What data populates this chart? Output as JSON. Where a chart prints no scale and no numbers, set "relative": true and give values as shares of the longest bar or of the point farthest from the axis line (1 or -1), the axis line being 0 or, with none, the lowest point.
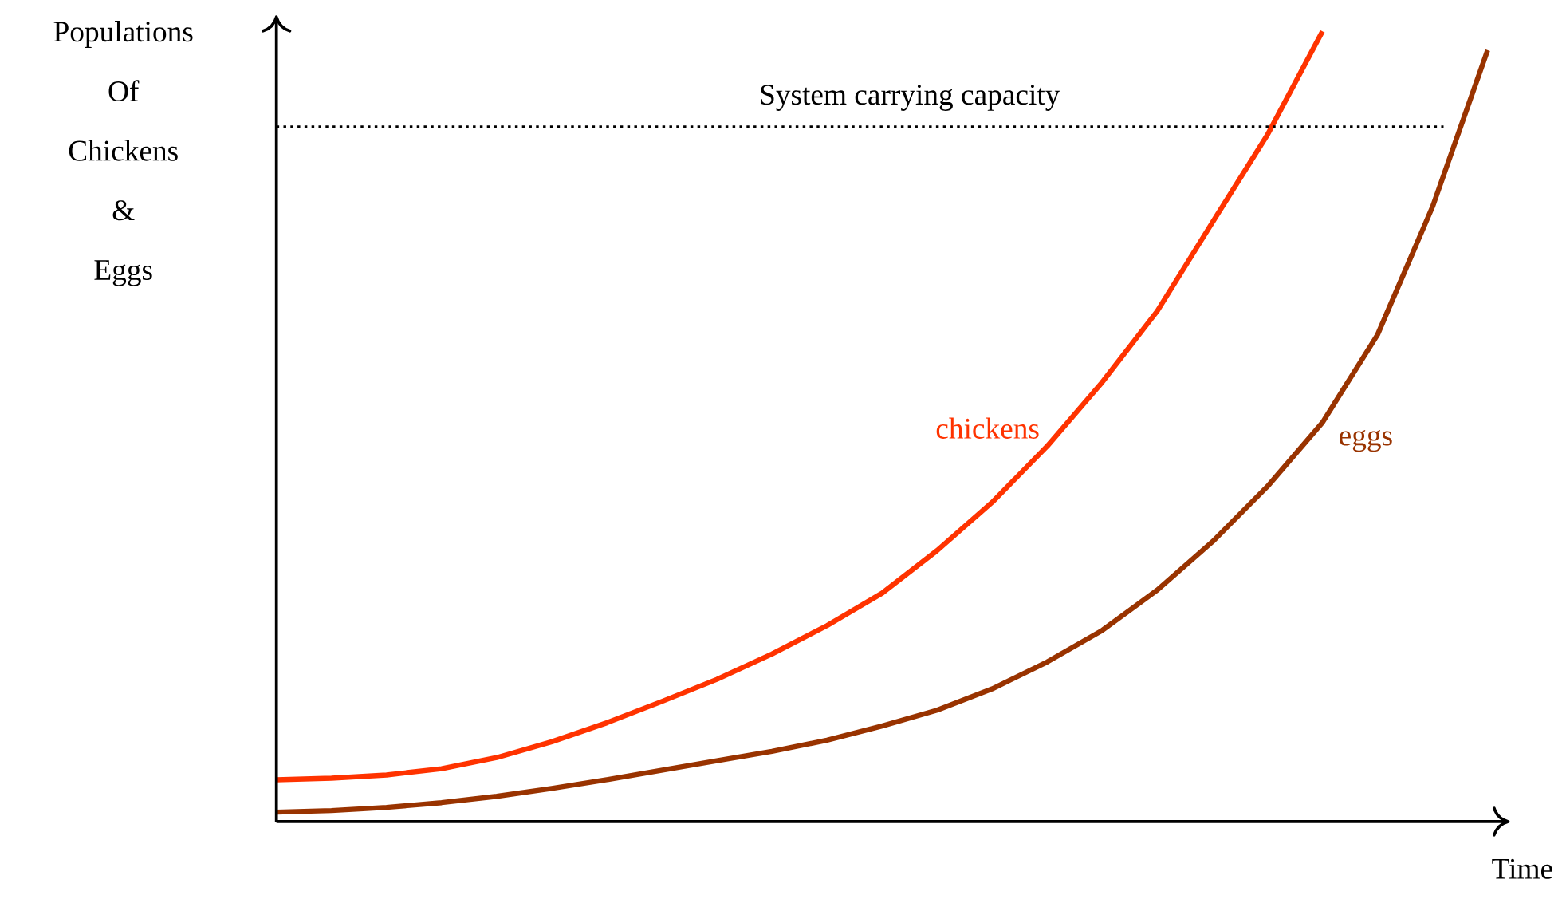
{
  "chart_data": {
    "type": "line",
    "relative": true,
    "ylabel": "Populations Of Chickens & Eggs",
    "xlabel": "Time",
    "legend": false,
    "marker": "none",
    "line_style": "solid",
    "categories": [
      null,
      null,
      null,
      null,
      null,
      null,
      null,
      null,
      null,
      null,
      null,
      null,
      null,
      null,
      null,
      null,
      null,
      null,
      null,
      null,
      null,
      null,
      null
    ],
    "series": [
      {
        "name": "chickens",
        "color": "#ff3300",
        "values": [
          0.053,
          0.055,
          0.059,
          0.067,
          0.081,
          0.101,
          0.125,
          0.152,
          0.18,
          0.212,
          0.248,
          0.289,
          0.343,
          0.404,
          0.475,
          0.556,
          0.646,
          0.758,
          0.869,
          1,
          null,
          null,
          null
        ]
      },
      {
        "name": "eggs",
        "color": "#993300",
        "values": [
          0.012,
          0.014,
          0.018,
          0.024,
          0.032,
          0.042,
          0.053,
          0.065,
          0.077,
          0.089,
          0.103,
          0.121,
          0.141,
          0.168,
          0.202,
          0.242,
          0.293,
          0.354,
          0.424,
          0.505,
          0.616,
          0.778,
          0.976
        ]
      }
    ],
    "ref_lines": [
      {
        "axis": "y",
        "value": 0.879,
        "label": "System carrying capacity",
        "color": "#000000",
        "line_style": "dotted"
      }
    ]
  }
}
